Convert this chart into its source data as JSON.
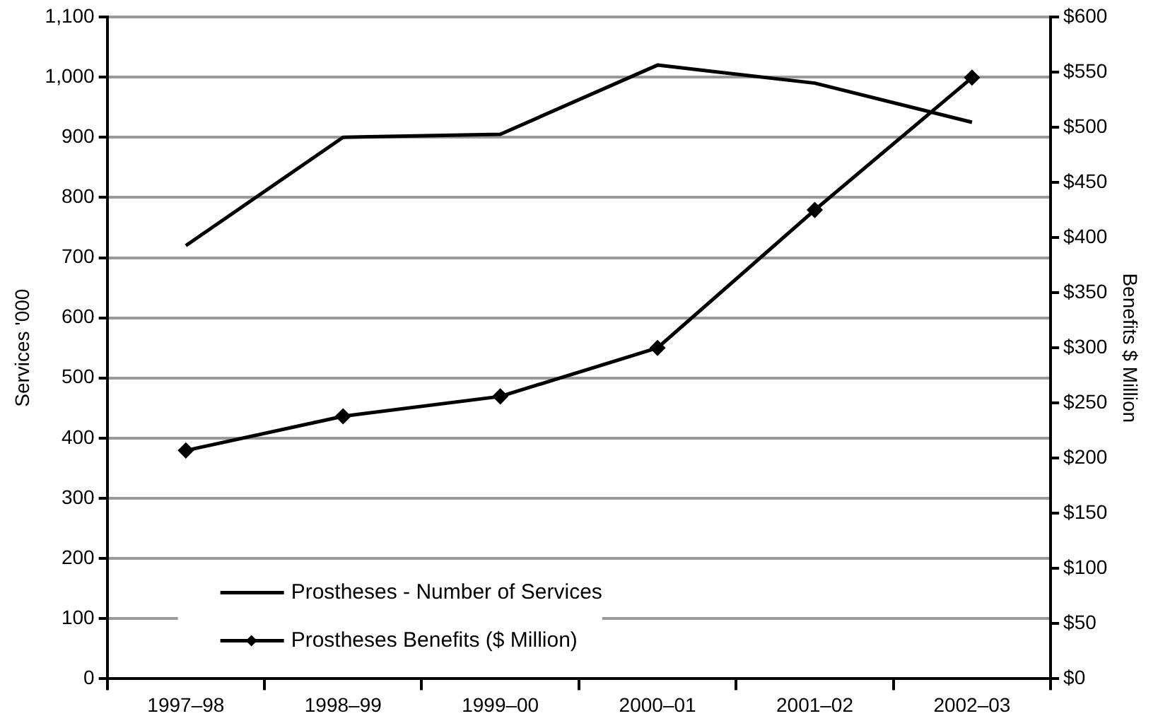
{
  "chart_data": {
    "type": "line",
    "ylabel": "Services '000",
    "y2label": "Benefits $ Million",
    "categories": [
      "1997–98",
      "1998–99",
      "1999–00",
      "2000–01",
      "2001–02",
      "2002–03"
    ],
    "series": [
      {
        "name": "Prostheses - Number of Services",
        "color": "#000000",
        "values": [
          720,
          900,
          905,
          1020,
          990,
          925
        ],
        "marker": "none"
      },
      {
        "name": "Prostheses Benefits ($ Million)",
        "color": "#000000",
        "values": [
          207,
          238,
          256,
          300,
          425,
          545
        ],
        "axis": "y2",
        "marker": "diamond"
      }
    ],
    "ylim": [
      0,
      1100
    ],
    "yticks": [
      0,
      100,
      200,
      300,
      400,
      500,
      600,
      700,
      800,
      900,
      {
        "value": 1000,
        "label": "1,000"
      },
      {
        "value": 1100,
        "label": "1,100"
      }
    ],
    "y2lim": [
      0,
      600
    ],
    "y2ticks": [
      {
        "value": 0,
        "label": "$0"
      },
      {
        "value": 50,
        "label": "$50"
      },
      {
        "value": 100,
        "label": "$100"
      },
      {
        "value": 150,
        "label": "$150"
      },
      {
        "value": 200,
        "label": "$200"
      },
      {
        "value": 250,
        "label": "$250"
      },
      {
        "value": 300,
        "label": "$300"
      },
      {
        "value": 350,
        "label": "$350"
      },
      {
        "value": 400,
        "label": "$400"
      },
      {
        "value": 450,
        "label": "$450"
      },
      {
        "value": 500,
        "label": "$500"
      },
      {
        "value": 550,
        "label": "$550"
      },
      {
        "value": 600,
        "label": "$600"
      }
    ],
    "grid": "y",
    "legend": "bottom left",
    "line_style": "solid"
  }
}
